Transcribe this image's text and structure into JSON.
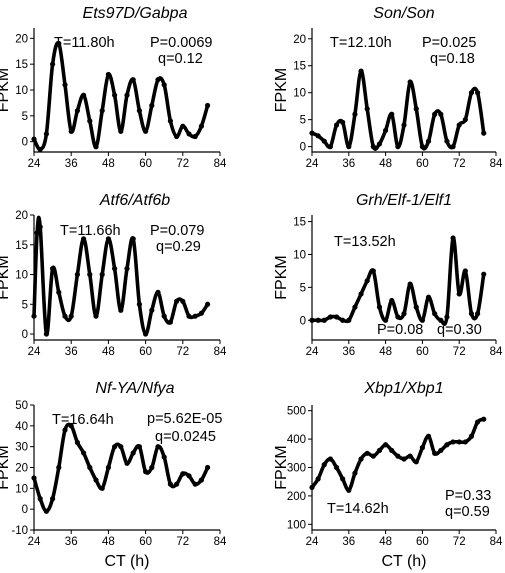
{
  "x_axis_label": "CT (h)",
  "chart_data": [
    {
      "type": "line",
      "title": "Ets97D/Gabpa",
      "ylabel": "FPKM",
      "xlabel": "",
      "xlim": [
        24,
        84
      ],
      "ylim": [
        -2,
        22
      ],
      "xticks": [
        24,
        36,
        48,
        60,
        72,
        84
      ],
      "yticks": [
        0,
        5,
        10,
        15,
        20
      ],
      "annotations": [
        "T=11.80h",
        "P=0.0069",
        "q=0.12"
      ],
      "x": [
        24,
        26,
        28,
        30,
        32,
        34,
        36,
        38,
        40,
        42,
        44,
        46,
        48,
        50,
        52,
        54,
        56,
        58,
        60,
        62,
        64,
        66,
        68,
        70,
        72,
        74,
        76,
        78,
        80
      ],
      "y": [
        0.5,
        -1.5,
        1.5,
        15,
        19,
        11,
        2,
        6,
        9,
        4,
        -1,
        6,
        13,
        9,
        2,
        9,
        12,
        6,
        2,
        7,
        12,
        11,
        4,
        1,
        3,
        1.5,
        1,
        3,
        7
      ]
    },
    {
      "type": "line",
      "title": "Son/Son",
      "ylabel": "FPKM",
      "xlabel": "",
      "xlim": [
        24,
        84
      ],
      "ylim": [
        -1,
        22
      ],
      "xticks": [
        24,
        36,
        48,
        60,
        72,
        84
      ],
      "yticks": [
        0,
        5,
        10,
        15,
        20
      ],
      "annotations": [
        "T=12.10h",
        "P=0.025",
        "q=0.18"
      ],
      "x": [
        24,
        26,
        28,
        30,
        32,
        34,
        36,
        38,
        40,
        42,
        44,
        46,
        48,
        50,
        52,
        54,
        56,
        58,
        60,
        62,
        64,
        66,
        68,
        70,
        72,
        74,
        76,
        78,
        80
      ],
      "y": [
        2.5,
        2,
        1,
        0,
        4,
        4.5,
        0,
        6,
        14,
        7,
        0,
        0.5,
        3,
        6,
        0,
        4,
        12,
        7,
        0,
        1,
        6,
        6,
        1,
        0,
        4,
        5,
        10,
        10,
        2.5
      ]
    },
    {
      "type": "line",
      "title": "Atf6/Atf6b",
      "ylabel": "FPKM",
      "xlabel": "",
      "xlim": [
        24,
        84
      ],
      "ylim": [
        -1,
        20
      ],
      "xticks": [
        24,
        36,
        48,
        60,
        72,
        84
      ],
      "yticks": [
        0,
        5,
        10,
        15,
        20
      ],
      "annotations": [
        "T=11.66h",
        "P=0.079",
        "q=0.29"
      ],
      "x": [
        24,
        25,
        26,
        28,
        30,
        32,
        34,
        36,
        38,
        40,
        42,
        44,
        46,
        48,
        50,
        52,
        54,
        56,
        58,
        60,
        62,
        64,
        66,
        68,
        70,
        72,
        74,
        76,
        78,
        80
      ],
      "y": [
        3,
        17,
        18,
        0,
        11,
        7,
        3,
        3,
        10,
        16,
        10,
        3,
        10,
        16,
        11,
        4,
        11,
        16,
        5,
        0,
        4,
        7,
        3,
        2,
        5.5,
        5.5,
        3,
        3,
        3.5,
        5
      ]
    },
    {
      "type": "line",
      "title": "Grh/Elf-1/Elf1",
      "ylabel": "FPKM",
      "xlabel": "",
      "xlim": [
        24,
        84
      ],
      "ylim": [
        -3,
        16
      ],
      "xticks": [
        24,
        36,
        48,
        60,
        72,
        84
      ],
      "yticks": [
        0,
        5,
        10,
        15
      ],
      "annotations": [
        "T=13.52h",
        "P=0.08",
        "q=0.30"
      ],
      "x": [
        24,
        26,
        28,
        30,
        32,
        34,
        36,
        38,
        40,
        42,
        44,
        46,
        48,
        50,
        52,
        54,
        56,
        58,
        60,
        62,
        64,
        66,
        68,
        70,
        72,
        74,
        76,
        78,
        80
      ],
      "y": [
        0,
        0,
        0,
        0.5,
        0.5,
        0,
        0,
        2,
        4,
        6,
        7.5,
        2,
        0,
        3,
        0.5,
        1,
        5.5,
        2,
        0,
        3.5,
        1,
        0,
        0.5,
        12.5,
        4,
        7.5,
        1,
        1,
        7
      ]
    },
    {
      "type": "line",
      "title": "Nf-YA/Nfya",
      "ylabel": "FPKM",
      "xlabel": "CT (h)",
      "xlim": [
        24,
        84
      ],
      "ylim": [
        -10,
        50
      ],
      "xticks": [
        24,
        36,
        48,
        60,
        72,
        84
      ],
      "yticks": [
        -10,
        0,
        10,
        20,
        30,
        40,
        50
      ],
      "annotations": [
        "T=16.64h",
        "p=5.62E-05",
        "q=0.0245"
      ],
      "x": [
        24,
        26,
        28,
        30,
        32,
        34,
        36,
        38,
        40,
        42,
        44,
        46,
        48,
        50,
        52,
        54,
        56,
        58,
        60,
        62,
        64,
        66,
        68,
        70,
        72,
        74,
        76,
        78,
        80
      ],
      "y": [
        15,
        5,
        -1,
        5,
        20,
        38,
        40,
        32,
        27,
        20,
        14,
        10,
        20,
        30,
        30,
        22,
        27,
        30,
        18,
        20,
        30,
        25,
        12,
        12,
        17,
        16,
        12,
        14,
        20
      ]
    },
    {
      "type": "line",
      "title": "Xbp1/Xbp1",
      "ylabel": "FPKM",
      "xlabel": "CT (h)",
      "xlim": [
        24,
        84
      ],
      "ylim": [
        80,
        520
      ],
      "xticks": [
        24,
        36,
        48,
        60,
        72,
        84
      ],
      "yticks": [
        100,
        200,
        300,
        400,
        500
      ],
      "annotations": [
        "T=14.62h",
        "P=0.33",
        "q=0.59"
      ],
      "x": [
        24,
        26,
        28,
        30,
        32,
        34,
        36,
        38,
        40,
        42,
        44,
        46,
        48,
        50,
        52,
        54,
        56,
        58,
        60,
        62,
        64,
        66,
        68,
        70,
        72,
        74,
        76,
        78,
        80
      ],
      "y": [
        230,
        260,
        310,
        330,
        300,
        260,
        220,
        280,
        330,
        350,
        340,
        360,
        380,
        360,
        340,
        330,
        340,
        320,
        370,
        410,
        350,
        360,
        380,
        390,
        390,
        390,
        410,
        460,
        470
      ]
    }
  ]
}
